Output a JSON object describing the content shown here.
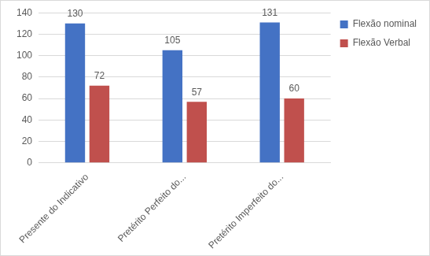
{
  "chart_data": {
    "type": "bar",
    "categories": [
      "Presente do Indicativo",
      "Pretérito Perfeito do...",
      "Pretérito Imperfeito do..."
    ],
    "series": [
      {
        "name": "Flexão nominal",
        "color": "#4472c4",
        "values": [
          130,
          105,
          131
        ]
      },
      {
        "name": "Flexão Verbal",
        "color": "#c0504d",
        "values": [
          72,
          57,
          60
        ]
      }
    ],
    "ylim": [
      0,
      140
    ],
    "yticks": [
      0,
      20,
      40,
      60,
      80,
      100,
      120,
      140
    ],
    "grid": true,
    "legend": "top-right",
    "data_labels": true
  }
}
